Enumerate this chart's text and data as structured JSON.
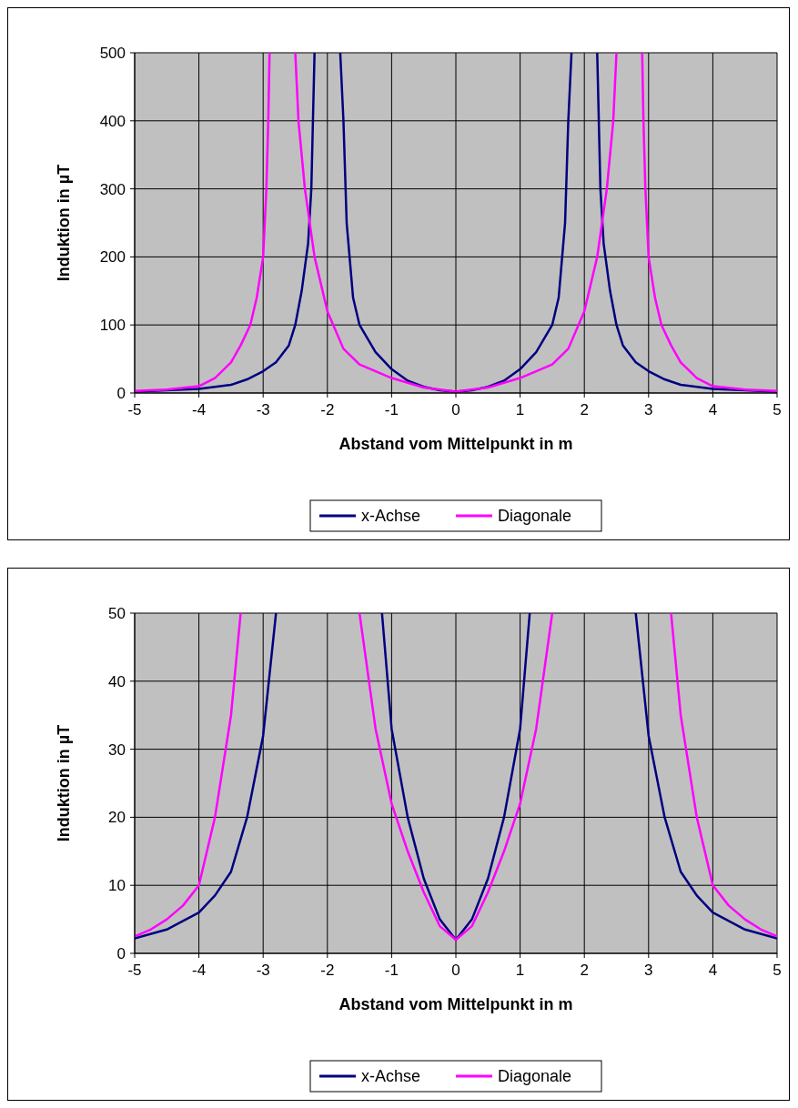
{
  "chart_data": [
    {
      "type": "line",
      "xlabel": "Abstand vom Mittelpunkt in m",
      "ylabel": "Induktion in µT",
      "xlim": [
        -5,
        5
      ],
      "xticks": [
        -5,
        -4,
        -3,
        -2,
        -1,
        0,
        1,
        2,
        3,
        4,
        5
      ],
      "ylim": [
        0,
        500
      ],
      "yticks": [
        0,
        100,
        200,
        300,
        400,
        500
      ],
      "grid": true,
      "legend": "bottom",
      "marker": "none",
      "series": [
        {
          "name": "x-Achse",
          "color": "#000080",
          "x": [
            -5,
            -4.5,
            -4,
            -3.5,
            -3.25,
            -3,
            -2.8,
            -2.6,
            -2.5,
            -2.4,
            -2.3,
            -2.25,
            -2.2,
            -2,
            -1.8,
            -1.75,
            -1.7,
            -1.6,
            -1.5,
            -1.25,
            -1,
            -0.75,
            -0.5,
            -0.25,
            0,
            0.25,
            0.5,
            0.75,
            1,
            1.25,
            1.5,
            1.6,
            1.7,
            1.75,
            1.8,
            2,
            2.2,
            2.25,
            2.3,
            2.4,
            2.5,
            2.6,
            2.8,
            3,
            3.25,
            3.5,
            4,
            4.5,
            5
          ],
          "values": [
            2,
            4,
            6,
            12,
            20,
            32,
            45,
            70,
            100,
            150,
            220,
            300,
            500,
            null,
            500,
            400,
            250,
            140,
            100,
            60,
            35,
            18,
            9,
            4,
            2,
            4,
            9,
            18,
            35,
            60,
            100,
            140,
            250,
            400,
            500,
            null,
            500,
            300,
            220,
            150,
            100,
            70,
            45,
            32,
            20,
            12,
            6,
            4,
            2
          ]
        },
        {
          "name": "Diagonale",
          "color": "#ff00ff",
          "x": [
            -5,
            -4.5,
            -4,
            -3.75,
            -3.5,
            -3.35,
            -3.2,
            -3.1,
            -3,
            -2.95,
            -2.92,
            -2.9,
            -2.7,
            -2.5,
            -2.45,
            -2.35,
            -2.2,
            -2,
            -1.75,
            -1.5,
            -1,
            -0.5,
            0,
            0.5,
            1,
            1.5,
            1.75,
            2,
            2.2,
            2.35,
            2.45,
            2.5,
            2.7,
            2.9,
            2.92,
            2.95,
            3,
            3.1,
            3.2,
            3.35,
            3.5,
            3.75,
            4,
            4.5,
            5
          ],
          "values": [
            3,
            5,
            10,
            22,
            45,
            70,
            100,
            140,
            200,
            300,
            400,
            500,
            null,
            500,
            400,
            300,
            200,
            120,
            65,
            42,
            22,
            8,
            2,
            8,
            22,
            42,
            65,
            120,
            200,
            300,
            400,
            500,
            null,
            500,
            400,
            300,
            200,
            140,
            100,
            70,
            45,
            22,
            10,
            5,
            3
          ]
        }
      ]
    },
    {
      "type": "line",
      "xlabel": "Abstand vom Mittelpunkt in m",
      "ylabel": "Induktion in µT",
      "xlim": [
        -5,
        5
      ],
      "xticks": [
        -5,
        -4,
        -3,
        -2,
        -1,
        0,
        1,
        2,
        3,
        4,
        5
      ],
      "ylim": [
        0,
        50
      ],
      "yticks": [
        0,
        10,
        20,
        30,
        40,
        50
      ],
      "grid": true,
      "legend": "bottom",
      "marker": "none",
      "series": [
        {
          "name": "x-Achse",
          "color": "#000080",
          "x": [
            -5,
            -4.5,
            -4,
            -3.75,
            -3.5,
            -3.25,
            -3,
            -2.8,
            -2,
            -1.15,
            -1,
            -0.75,
            -0.5,
            -0.25,
            0,
            0.25,
            0.5,
            0.75,
            1,
            1.15,
            2,
            2.8,
            3,
            3.25,
            3.5,
            3.75,
            4,
            4.5,
            5
          ],
          "values": [
            2.2,
            3.5,
            6,
            8.5,
            12,
            20,
            32,
            50,
            null,
            50,
            33,
            20,
            11,
            5,
            2,
            5,
            11,
            20,
            33,
            50,
            null,
            50,
            32,
            20,
            12,
            8.5,
            6,
            3.5,
            2.2
          ]
        },
        {
          "name": "Diagonale",
          "color": "#ff00ff",
          "x": [
            -5,
            -4.75,
            -4.5,
            -4.25,
            -4,
            -3.75,
            -3.5,
            -3.35,
            -2.5,
            -1.5,
            -1.25,
            -1,
            -0.75,
            -0.5,
            -0.25,
            0,
            0.25,
            0.5,
            0.75,
            1,
            1.25,
            1.5,
            2.5,
            3.35,
            3.5,
            3.75,
            4,
            4.25,
            4.5,
            4.75,
            5
          ],
          "values": [
            2.5,
            3.5,
            5,
            7,
            10,
            20,
            35,
            50,
            null,
            50,
            33,
            22,
            15,
            9,
            4,
            2,
            4,
            9,
            15,
            22,
            33,
            50,
            null,
            50,
            35,
            20,
            10,
            7,
            5,
            3.5,
            2.5
          ]
        }
      ]
    }
  ]
}
